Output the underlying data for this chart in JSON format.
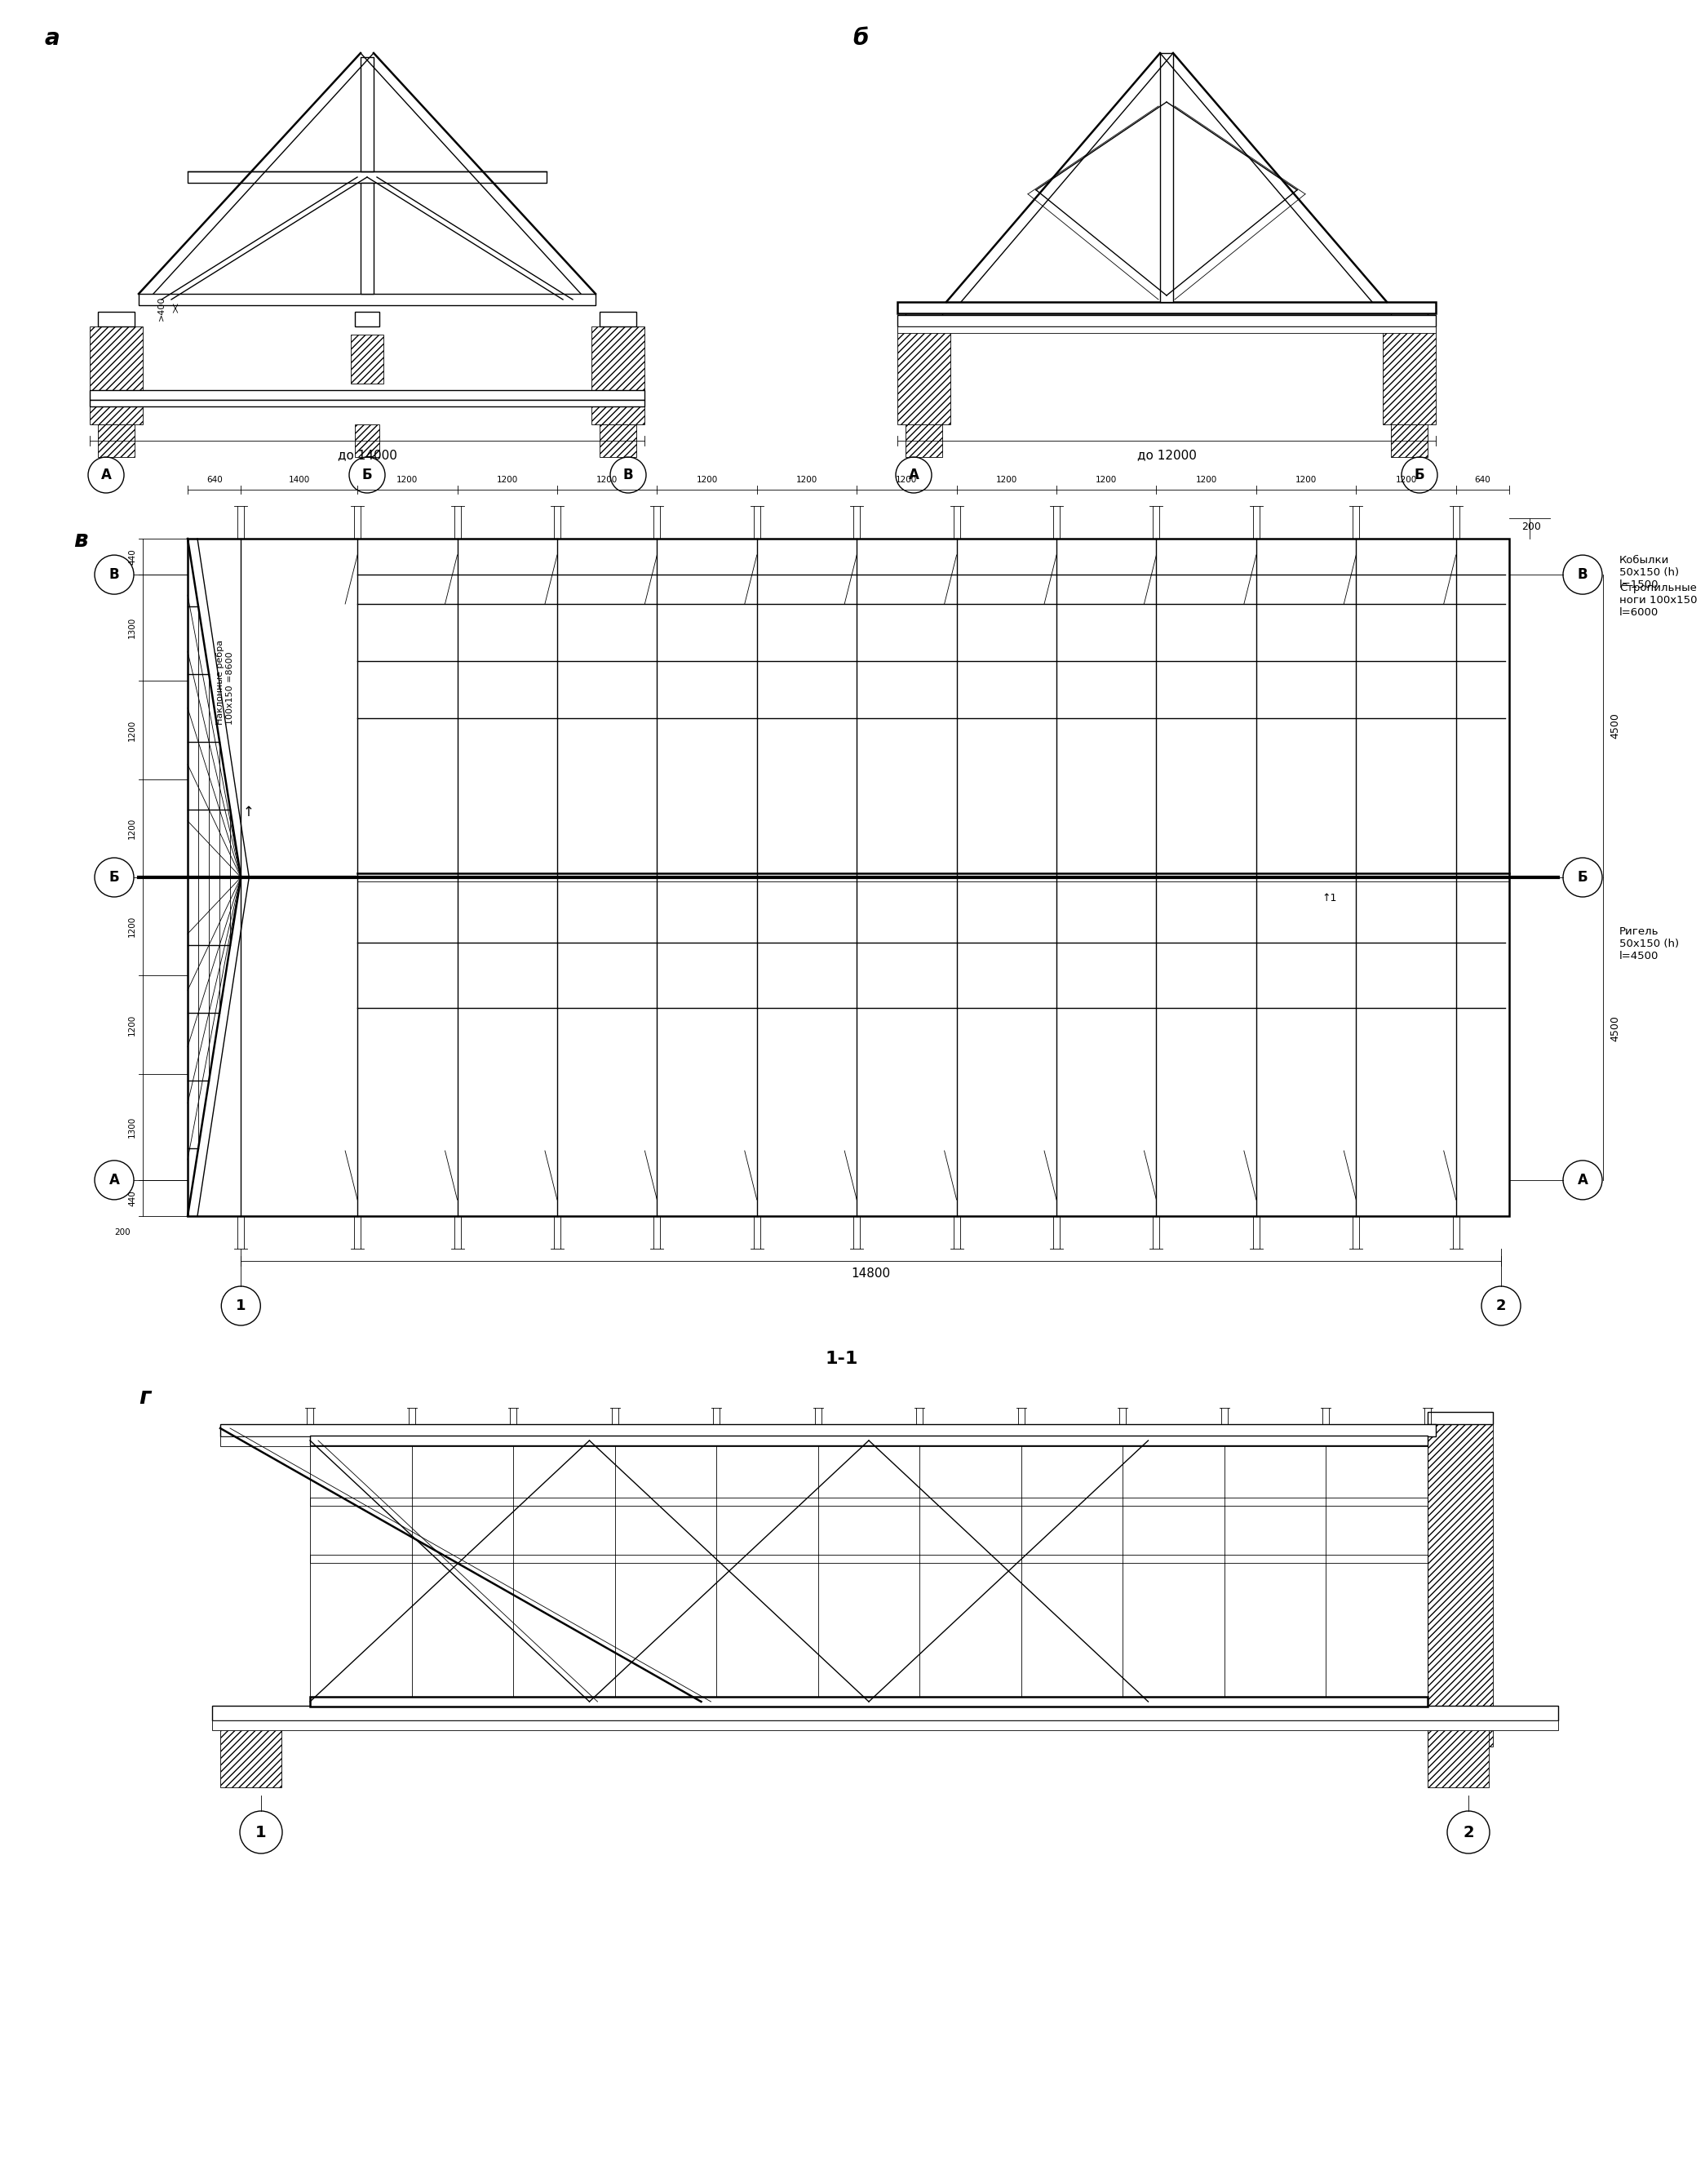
{
  "bg_color": "#ffffff",
  "dim_14000": "до 14000",
  "dim_12000": "до 12000",
  "dim_14800": "14800",
  "label_kobylki": "Кобылки\n50x150 (h)\nl=1500",
  "label_stropilnye": "Стропильные\nноги 100x150\nl=6000",
  "label_rigel": "Ригель\n50x150 (h)\nl=4500",
  "label_nakl": "Наклонные ребра\n100x150 =8600",
  "section_11": "1-1",
  "top_dim_labels": [
    "640",
    "1400",
    "1200",
    "1200",
    "1200",
    "1200",
    "1200",
    "1200",
    "1200",
    "1200",
    "1200",
    "1200",
    "1200",
    "640"
  ],
  "left_dim_labels": [
    "440",
    "1300",
    "1200",
    "1200",
    "1200",
    "1200",
    "1300",
    "440",
    "200"
  ],
  "left_dim_vals": [
    440,
    1300,
    1200,
    1200,
    1200,
    1200,
    1300,
    440
  ]
}
